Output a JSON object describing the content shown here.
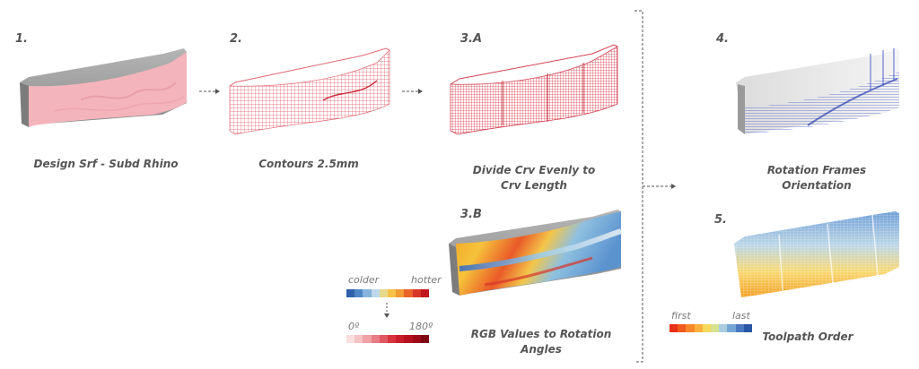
{
  "steps": [
    {
      "num": "1.",
      "caption": "Design Srf - Subd Rhino"
    },
    {
      "num": "2.",
      "caption": "Contours 2.5mm"
    },
    {
      "num": "3.A",
      "caption": "Divide Crv Evenly to\nCrv Length"
    },
    {
      "num": "3.B",
      "caption": "RGB Values to Rotation\nAngles"
    },
    {
      "num": "4.",
      "caption": "Rotation Frames\nOrientation"
    },
    {
      "num": "5.",
      "caption": "Toolpath Order"
    }
  ],
  "legend_temp": {
    "left": "colder",
    "right": "hotter",
    "colors": [
      "#2f5fa8",
      "#4f85c5",
      "#86b3dd",
      "#bcd8ea",
      "#e7d98c",
      "#f5c247",
      "#f39a35",
      "#ea6327",
      "#d8352a",
      "#c0141e"
    ]
  },
  "legend_angle": {
    "left": "0º",
    "right": "180º",
    "colors": [
      "#fbdede",
      "#f6c2c4",
      "#f0a2a6",
      "#e97c84",
      "#e05862",
      "#d6333f",
      "#c91d2b",
      "#b5101f",
      "#9c0a18",
      "#7e0612"
    ]
  },
  "legend_order": {
    "left": "first",
    "right": "last",
    "colors": [
      "#e8311b",
      "#f05a1e",
      "#f8862a",
      "#fbb13c",
      "#f6d95a",
      "#d6e28f",
      "#a8cde0",
      "#74a6d6",
      "#4978bf",
      "#2a57a5"
    ]
  }
}
